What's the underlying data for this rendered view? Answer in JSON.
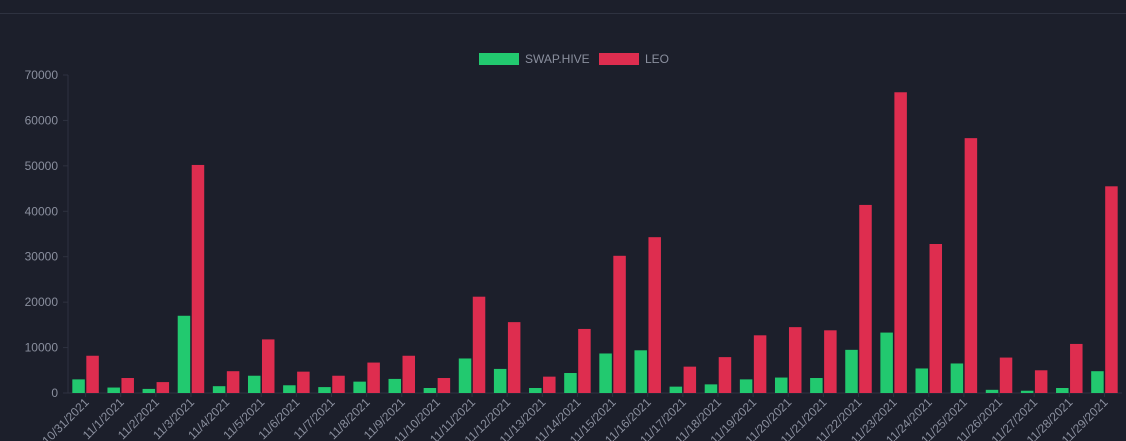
{
  "chart_data": {
    "type": "bar",
    "categories": [
      "10/31/2021",
      "11/1/2021",
      "11/2/2021",
      "11/3/2021",
      "11/4/2021",
      "11/5/2021",
      "11/6/2021",
      "11/7/2021",
      "11/8/2021",
      "11/9/2021",
      "11/10/2021",
      "11/11/2021",
      "11/12/2021",
      "11/13/2021",
      "11/14/2021",
      "11/15/2021",
      "11/16/2021",
      "11/17/2021",
      "11/18/2021",
      "11/19/2021",
      "11/20/2021",
      "11/21/2021",
      "11/22/2021",
      "11/23/2021",
      "11/24/2021",
      "11/25/2021",
      "11/26/2021",
      "11/27/2021",
      "11/28/2021",
      "11/29/2021"
    ],
    "series": [
      {
        "name": "SWAP.HIVE",
        "color": "#22c96f",
        "values": [
          3000,
          1200,
          900,
          17000,
          1500,
          3800,
          1700,
          1300,
          2500,
          3100,
          1100,
          7600,
          5300,
          1100,
          4400,
          8700,
          9400,
          1400,
          1900,
          3000,
          3400,
          3300,
          9500,
          13300,
          5400,
          6500,
          700,
          500,
          1100,
          4800
        ]
      },
      {
        "name": "LEO",
        "color": "#de2d4f",
        "values": [
          8200,
          3300,
          2400,
          50200,
          4800,
          11800,
          4700,
          3800,
          6700,
          8200,
          3300,
          21200,
          15600,
          3600,
          14100,
          30200,
          34300,
          5800,
          7900,
          12700,
          14500,
          13800,
          41400,
          66200,
          32800,
          56100,
          7800,
          5000,
          10800,
          45500
        ]
      }
    ],
    "yticks": [
      0,
      10000,
      20000,
      30000,
      40000,
      50000,
      60000,
      70000
    ],
    "ylim": [
      0,
      70000
    ],
    "legend_position": "top",
    "grid": false,
    "axis_color": "#2e3240",
    "text_color": "#8a8f9e",
    "background": "#1c1f2b"
  }
}
